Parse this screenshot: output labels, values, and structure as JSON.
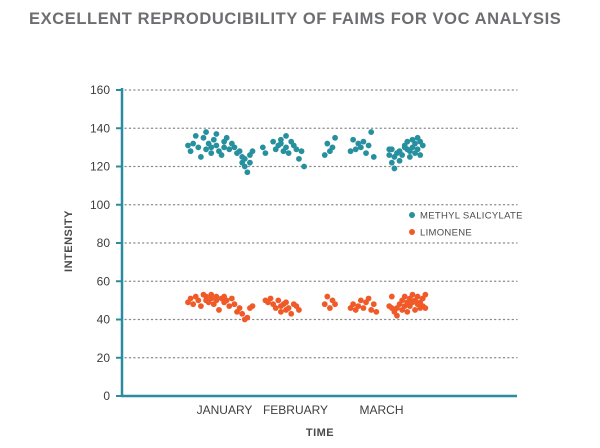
{
  "chart_data": {
    "type": "scatter",
    "title": "EXCELLENT REPRODUCIBILITY OF FAIMS FOR VOC ANALYSIS",
    "xlabel": "TIME",
    "ylabel": "INTENSITY",
    "categories": [
      "JANUARY",
      "FEBRUARY",
      "MARCH"
    ],
    "ylim": [
      0,
      160
    ],
    "yticks": [
      0,
      20,
      40,
      60,
      80,
      100,
      120,
      140,
      160
    ],
    "grid": "horizontal dotted",
    "legend_position": "right",
    "colors": {
      "axis": "#2a8ca0",
      "grid": "#8a8a8a",
      "methyl_salicylate": "#27909f",
      "limonene": "#f05a28"
    },
    "series": [
      {
        "name": "METHYL SALICYLATE",
        "color": "#27909f",
        "values": [
          131,
          128,
          132,
          136,
          130,
          125,
          135,
          138,
          129,
          132,
          130,
          127,
          134,
          137,
          131,
          128,
          126,
          133,
          130,
          135,
          129,
          132,
          130,
          127,
          128,
          125,
          122,
          124,
          120,
          117,
          126,
          122,
          128,
          130,
          127,
          133,
          129,
          131,
          134,
          132,
          128,
          130,
          136,
          127,
          133,
          131,
          129,
          124,
          128,
          120,
          126,
          132,
          128,
          130,
          135,
          128,
          134,
          129,
          132,
          130,
          133,
          127,
          131,
          138,
          125,
          129,
          126,
          129,
          122,
          125,
          119,
          127,
          128,
          123,
          126,
          130,
          131,
          129,
          133,
          128,
          125,
          134,
          130,
          127,
          132,
          129,
          135,
          126,
          133,
          131
        ],
        "dates": [
          "2017-01-02",
          "2017-01-03",
          "2017-01-04",
          "2017-01-05",
          "2017-01-06",
          "2017-01-07",
          "2017-01-08",
          "2017-01-09",
          "2017-01-09",
          "2017-01-10",
          "2017-01-11",
          "2017-01-11",
          "2017-01-12",
          "2017-01-13",
          "2017-01-13",
          "2017-01-14",
          "2017-01-15",
          "2017-01-16",
          "2017-01-16",
          "2017-01-17",
          "2017-01-18",
          "2017-01-19",
          "2017-01-20",
          "2017-01-21",
          "2017-01-22",
          "2017-01-23",
          "2017-01-23",
          "2017-01-24",
          "2017-01-24",
          "2017-01-25",
          "2017-01-26",
          "2017-01-26",
          "2017-01-27",
          "2017-01-31",
          "2017-02-01",
          "2017-02-04",
          "2017-02-05",
          "2017-02-06",
          "2017-02-07",
          "2017-02-07",
          "2017-02-08",
          "2017-02-09",
          "2017-02-09",
          "2017-02-10",
          "2017-02-11",
          "2017-02-12",
          "2017-02-13",
          "2017-02-14",
          "2017-02-15",
          "2017-02-16",
          "2017-02-24",
          "2017-02-25",
          "2017-02-26",
          "2017-02-27",
          "2017-02-28",
          "2017-03-06",
          "2017-03-07",
          "2017-03-08",
          "2017-03-09",
          "2017-03-10",
          "2017-03-11",
          "2017-03-12",
          "2017-03-13",
          "2017-03-14",
          "2017-03-15",
          "2017-03-21",
          "2017-03-21",
          "2017-03-22",
          "2017-03-22",
          "2017-03-23",
          "2017-03-23",
          "2017-03-24",
          "2017-03-25",
          "2017-03-25",
          "2017-03-26",
          "2017-03-27",
          "2017-03-27",
          "2017-03-28",
          "2017-03-28",
          "2017-03-29",
          "2017-03-29",
          "2017-03-30",
          "2017-03-30",
          "2017-03-31",
          "2017-03-31",
          "2017-04-01",
          "2017-04-01",
          "2017-04-02",
          "2017-04-02",
          "2017-04-03"
        ]
      },
      {
        "name": "LIMONENE",
        "color": "#f05a28",
        "values": [
          49,
          51,
          48,
          52,
          50,
          47,
          53,
          50,
          52,
          49,
          51,
          53,
          48,
          52,
          50,
          45,
          51,
          49,
          52,
          50,
          47,
          51,
          48,
          44,
          46,
          43,
          40,
          41,
          46,
          47,
          50,
          49,
          51,
          48,
          46,
          50,
          47,
          44,
          48,
          45,
          49,
          46,
          43,
          48,
          47,
          45,
          48,
          52,
          46,
          50,
          48,
          46,
          48,
          45,
          47,
          50,
          46,
          49,
          51,
          45,
          48,
          44,
          47,
          52,
          46,
          45,
          44,
          42,
          46,
          48,
          45,
          50,
          47,
          52,
          49,
          44,
          51,
          47,
          53,
          49,
          45,
          50,
          48,
          52,
          46,
          49,
          51,
          47,
          53,
          46
        ],
        "dates": [
          "2017-01-02",
          "2017-01-03",
          "2017-01-04",
          "2017-01-05",
          "2017-01-06",
          "2017-01-07",
          "2017-01-08",
          "2017-01-09",
          "2017-01-09",
          "2017-01-10",
          "2017-01-11",
          "2017-01-11",
          "2017-01-12",
          "2017-01-13",
          "2017-01-13",
          "2017-01-14",
          "2017-01-15",
          "2017-01-16",
          "2017-01-16",
          "2017-01-17",
          "2017-01-18",
          "2017-01-19",
          "2017-01-20",
          "2017-01-21",
          "2017-01-22",
          "2017-01-23",
          "2017-01-24",
          "2017-01-25",
          "2017-01-26",
          "2017-01-27",
          "2017-02-01",
          "2017-02-02",
          "2017-02-03",
          "2017-02-04",
          "2017-02-05",
          "2017-02-06",
          "2017-02-07",
          "2017-02-07",
          "2017-02-08",
          "2017-02-09",
          "2017-02-09",
          "2017-02-10",
          "2017-02-11",
          "2017-02-12",
          "2017-02-13",
          "2017-02-14",
          "2017-02-24",
          "2017-02-25",
          "2017-02-26",
          "2017-02-27",
          "2017-02-28",
          "2017-03-06",
          "2017-03-07",
          "2017-03-08",
          "2017-03-09",
          "2017-03-10",
          "2017-03-11",
          "2017-03-12",
          "2017-03-13",
          "2017-03-14",
          "2017-03-15",
          "2017-03-16",
          "2017-03-21",
          "2017-03-22",
          "2017-03-22",
          "2017-03-23",
          "2017-03-23",
          "2017-03-24",
          "2017-03-24",
          "2017-03-25",
          "2017-03-26",
          "2017-03-26",
          "2017-03-27",
          "2017-03-27",
          "2017-03-28",
          "2017-03-28",
          "2017-03-29",
          "2017-03-29",
          "2017-03-30",
          "2017-03-30",
          "2017-03-31",
          "2017-03-31",
          "2017-04-01",
          "2017-04-01",
          "2017-04-02",
          "2017-04-02",
          "2017-04-03",
          "2017-04-03",
          "2017-04-04",
          "2017-04-04"
        ]
      }
    ]
  }
}
